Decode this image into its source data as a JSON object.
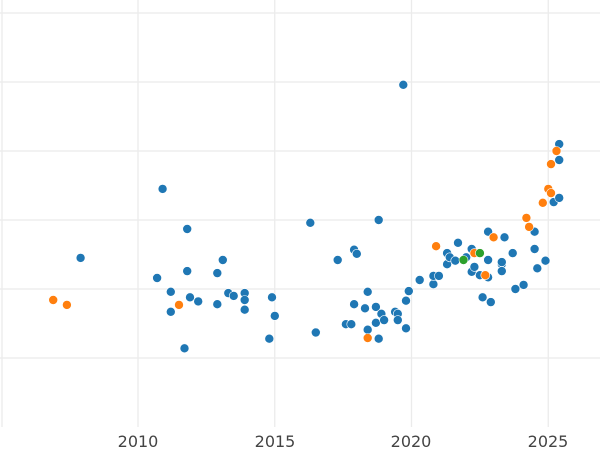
{
  "chart_data": {
    "type": "scatter",
    "title": "",
    "xlabel": "",
    "ylabel": "",
    "xlim": [
      2005.0,
      2026.9
    ],
    "ylim": [
      0,
      6.2
    ],
    "grid": true,
    "legend": null,
    "x_ticks": [
      2010,
      2015,
      2020,
      2025
    ],
    "y_ticks_note": "horizontal gridlines present but no y tick labels shown",
    "y_gridlines": [
      1,
      2,
      3,
      4,
      5,
      6
    ],
    "series": [
      {
        "name": "blue",
        "color": "#1f77b4",
        "points": [
          [
            2007.9,
            2.45
          ],
          [
            2010.7,
            2.16
          ],
          [
            2010.9,
            3.45
          ],
          [
            2011.2,
            1.67
          ],
          [
            2011.2,
            1.96
          ],
          [
            2011.7,
            1.14
          ],
          [
            2011.8,
            2.87
          ],
          [
            2011.8,
            2.26
          ],
          [
            2011.9,
            1.88
          ],
          [
            2012.2,
            1.82
          ],
          [
            2012.9,
            1.78
          ],
          [
            2012.9,
            2.23
          ],
          [
            2013.1,
            2.42
          ],
          [
            2013.3,
            1.94
          ],
          [
            2013.5,
            1.9
          ],
          [
            2013.9,
            1.94
          ],
          [
            2013.9,
            1.84
          ],
          [
            2013.9,
            1.7
          ],
          [
            2014.8,
            1.28
          ],
          [
            2014.9,
            1.88
          ],
          [
            2015.0,
            1.61
          ],
          [
            2016.3,
            2.96
          ],
          [
            2016.5,
            1.37
          ],
          [
            2017.3,
            2.42
          ],
          [
            2017.6,
            1.49
          ],
          [
            2017.8,
            1.49
          ],
          [
            2017.9,
            2.57
          ],
          [
            2018.0,
            2.51
          ],
          [
            2017.9,
            1.78
          ],
          [
            2018.3,
            1.72
          ],
          [
            2018.4,
            1.96
          ],
          [
            2018.4,
            1.41
          ],
          [
            2018.7,
            1.51
          ],
          [
            2018.7,
            1.74
          ],
          [
            2018.8,
            3.0
          ],
          [
            2018.8,
            1.28
          ],
          [
            2018.9,
            1.64
          ],
          [
            2019.0,
            1.55
          ],
          [
            2019.4,
            1.67
          ],
          [
            2019.5,
            1.64
          ],
          [
            2019.5,
            1.55
          ],
          [
            2019.7,
            4.96
          ],
          [
            2019.8,
            1.43
          ],
          [
            2019.8,
            1.83
          ],
          [
            2019.9,
            1.97
          ],
          [
            2020.3,
            2.13
          ],
          [
            2020.8,
            2.07
          ],
          [
            2020.8,
            2.19
          ],
          [
            2021.0,
            2.19
          ],
          [
            2021.3,
            2.52
          ],
          [
            2021.3,
            2.36
          ],
          [
            2021.4,
            2.46
          ],
          [
            2021.6,
            2.41
          ],
          [
            2021.7,
            2.67
          ],
          [
            2022.0,
            2.46
          ],
          [
            2022.2,
            2.58
          ],
          [
            2022.2,
            2.25
          ],
          [
            2022.3,
            2.32
          ],
          [
            2022.5,
            2.2
          ],
          [
            2022.6,
            1.88
          ],
          [
            2022.8,
            2.17
          ],
          [
            2022.8,
            2.42
          ],
          [
            2022.8,
            2.83
          ],
          [
            2022.9,
            1.81
          ],
          [
            2023.3,
            2.36
          ],
          [
            2023.3,
            2.39
          ],
          [
            2023.3,
            2.26
          ],
          [
            2023.4,
            2.75
          ],
          [
            2023.7,
            2.52
          ],
          [
            2023.8,
            2.0
          ],
          [
            2024.1,
            2.06
          ],
          [
            2024.5,
            2.83
          ],
          [
            2024.5,
            2.58
          ],
          [
            2024.6,
            2.3
          ],
          [
            2024.9,
            2.41
          ],
          [
            2025.2,
            3.26
          ],
          [
            2025.4,
            3.87
          ],
          [
            2025.4,
            4.1
          ],
          [
            2025.4,
            3.32
          ]
        ]
      },
      {
        "name": "orange",
        "color": "#ff7f0e",
        "points": [
          [
            2006.9,
            1.84
          ],
          [
            2007.4,
            1.77
          ],
          [
            2011.5,
            1.77
          ],
          [
            2018.4,
            1.29
          ],
          [
            2020.9,
            2.62
          ],
          [
            2022.3,
            2.52
          ],
          [
            2022.7,
            2.2
          ],
          [
            2023.0,
            2.75
          ],
          [
            2024.2,
            3.03
          ],
          [
            2024.3,
            2.9
          ],
          [
            2024.8,
            3.25
          ],
          [
            2025.0,
            3.45
          ],
          [
            2025.1,
            3.39
          ],
          [
            2025.1,
            3.81
          ],
          [
            2025.3,
            4.0
          ]
        ]
      },
      {
        "name": "green",
        "color": "#2ca02c",
        "points": [
          [
            2021.9,
            2.42
          ],
          [
            2022.5,
            2.52
          ]
        ]
      }
    ]
  },
  "axes": {
    "x_tick_labels": [
      "2010",
      "2015",
      "2020",
      "2025"
    ],
    "grid_color": "#ebebeb",
    "tick_label_color": "#444444"
  }
}
